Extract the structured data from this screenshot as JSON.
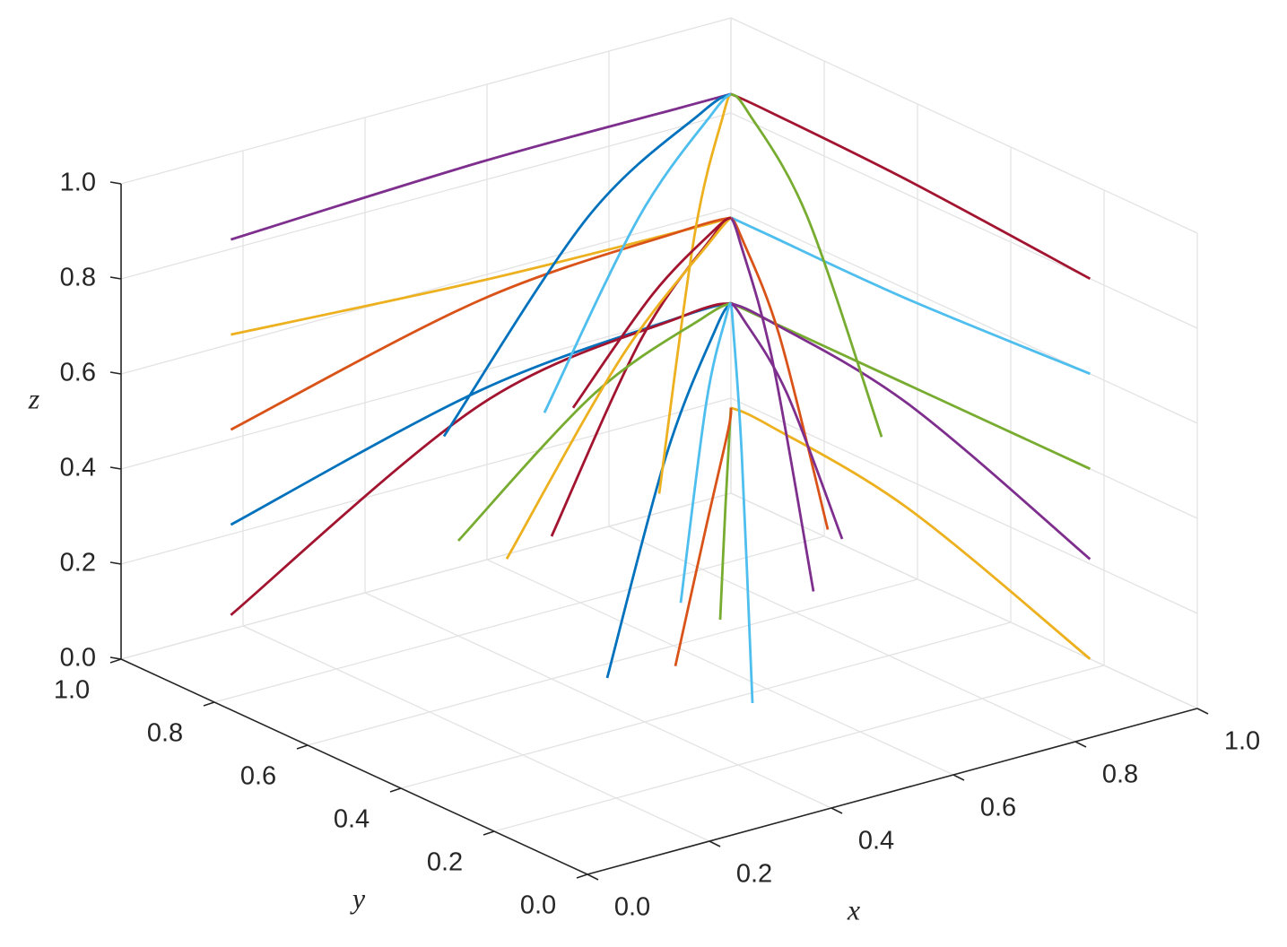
{
  "chart_data": {
    "type": "line3d",
    "x_label": "x",
    "y_label": "y",
    "z_label": "z",
    "xlim": [
      0,
      1
    ],
    "ylim": [
      0,
      1
    ],
    "zlim": [
      0,
      1
    ],
    "xticks": [
      {
        "value": 0,
        "label": "0.0"
      },
      {
        "value": 0.2,
        "label": "0.2"
      },
      {
        "value": 0.4,
        "label": "0.4"
      },
      {
        "value": 0.6,
        "label": "0.6"
      },
      {
        "value": 0.8,
        "label": "0.8"
      },
      {
        "value": 1,
        "label": "1.0"
      }
    ],
    "yticks": [
      {
        "value": 0,
        "label": "0.0"
      },
      {
        "value": 0.2,
        "label": "0.2"
      },
      {
        "value": 0.4,
        "label": "0.4"
      },
      {
        "value": 0.6,
        "label": "0.6"
      },
      {
        "value": 0.8,
        "label": "0.8"
      },
      {
        "value": 1,
        "label": "1.0"
      }
    ],
    "zticks": [
      {
        "value": 0,
        "label": "0.0"
      },
      {
        "value": 0.2,
        "label": "0.2"
      },
      {
        "value": 0.4,
        "label": "0.4"
      },
      {
        "value": 0.6,
        "label": "0.6"
      },
      {
        "value": 0.8,
        "label": "0.8"
      },
      {
        "value": 1,
        "label": "1.0"
      }
    ],
    "grid": true,
    "series": [
      {
        "color": "#7E2F8E",
        "x": [
          0.18,
          0.59,
          0.92,
          1
        ],
        "y": [
          1,
          1,
          1,
          1
        ],
        "z": [
          0.82,
          0.84,
          0.84,
          0.84
        ]
      },
      {
        "color": "#EDB120",
        "x": [
          0.18,
          0.59,
          0.92,
          1
        ],
        "y": [
          1,
          1,
          1,
          1
        ],
        "z": [
          0.62,
          0.59,
          0.58,
          0.58
        ]
      },
      {
        "color": "#D95319",
        "x": [
          0.18,
          0.59,
          0.92,
          1
        ],
        "y": [
          1,
          1,
          1,
          1
        ],
        "z": [
          0.42,
          0.55,
          0.58,
          0.58
        ]
      },
      {
        "color": "#0072BD",
        "x": [
          0.18,
          0.59,
          0.92,
          1
        ],
        "y": [
          1,
          1,
          1,
          1
        ],
        "z": [
          0.22,
          0.36,
          0.4,
          0.4
        ]
      },
      {
        "color": "#A2142F",
        "x": [
          0.18,
          0.59,
          0.92,
          1
        ],
        "y": [
          1,
          1,
          1,
          1
        ],
        "z": [
          0.03,
          0.33,
          0.4,
          0.4
        ]
      },
      {
        "color": "#A2142F",
        "x": [
          1,
          1,
          1,
          1
        ],
        "y": [
          0.23,
          0.62,
          0.92,
          1
        ],
        "z": [
          0.8,
          0.83,
          0.84,
          0.84
        ]
      },
      {
        "color": "#4DBEEE",
        "x": [
          1,
          1,
          1,
          1
        ],
        "y": [
          0.23,
          0.62,
          0.92,
          1
        ],
        "z": [
          0.6,
          0.58,
          0.58,
          0.58
        ]
      },
      {
        "color": "#77AC30",
        "x": [
          1,
          1,
          1,
          1
        ],
        "y": [
          0.23,
          0.62,
          0.92,
          1
        ],
        "z": [
          0.4,
          0.4,
          0.4,
          0.4
        ]
      },
      {
        "color": "#7E2F8E",
        "x": [
          1,
          1,
          1,
          1
        ],
        "y": [
          0.23,
          0.62,
          0.92,
          1
        ],
        "z": [
          0.21,
          0.36,
          0.4,
          0.4
        ]
      },
      {
        "color": "#EDB120",
        "x": [
          1,
          1,
          1,
          1
        ],
        "y": [
          0.23,
          0.62,
          0.92,
          1
        ],
        "z": [
          0.0,
          0.14,
          0.18,
          0.18
        ]
      },
      {
        "color": "#0072BD",
        "x": [
          0.3,
          0.65,
          0.93,
          1
        ],
        "y": [
          0.35,
          0.68,
          0.94,
          1
        ],
        "z": [
          0.15,
          0.35,
          0.4,
          0.4
        ]
      },
      {
        "color": "#4DBEEE",
        "x": [
          0.5,
          0.75,
          0.95,
          1
        ],
        "y": [
          0.3,
          0.65,
          0.93,
          1
        ],
        "z": [
          0.05,
          0.33,
          0.4,
          0.4
        ]
      },
      {
        "color": "#77AC30",
        "x": [
          0.6,
          0.8,
          0.96,
          1
        ],
        "y": [
          0.5,
          0.75,
          0.95,
          1
        ],
        "z": [
          0.1,
          0.16,
          0.18,
          0.18
        ]
      },
      {
        "color": "#A2142F",
        "x": [
          0.4,
          0.7,
          0.94,
          1
        ],
        "y": [
          0.6,
          0.8,
          0.96,
          1
        ],
        "z": [
          0.3,
          0.52,
          0.58,
          0.58
        ]
      },
      {
        "color": "#D95319",
        "x": [
          0.7,
          0.85,
          0.97,
          1
        ],
        "y": [
          0.4,
          0.7,
          0.94,
          1
        ],
        "z": [
          0.3,
          0.52,
          0.58,
          0.58
        ]
      },
      {
        "color": "#0072BD",
        "x": [
          0.3,
          0.65,
          0.93,
          1
        ],
        "y": [
          0.7,
          0.85,
          0.97,
          1
        ],
        "z": [
          0.5,
          0.77,
          0.84,
          0.84
        ]
      },
      {
        "color": "#EDB120",
        "x": [
          0.5,
          0.75,
          0.95,
          1
        ],
        "y": [
          0.5,
          0.75,
          0.95,
          1
        ],
        "z": [
          0.4,
          0.75,
          0.84,
          0.84
        ]
      },
      {
        "color": "#7E2F8E",
        "x": [
          0.8,
          0.9,
          0.98,
          1
        ],
        "y": [
          0.5,
          0.75,
          0.95,
          1
        ],
        "z": [
          0.2,
          0.36,
          0.4,
          0.4
        ]
      },
      {
        "color": "#77AC30",
        "x": [
          0.4,
          0.7,
          0.94,
          1
        ],
        "y": [
          0.8,
          0.9,
          0.98,
          1
        ],
        "z": [
          0.2,
          0.36,
          0.4,
          0.4
        ]
      },
      {
        "color": "#7E2F8E",
        "x": [
          0.6,
          0.8,
          0.96,
          1
        ],
        "y": [
          0.3,
          0.65,
          0.93,
          1
        ],
        "z": [
          0.25,
          0.51,
          0.58,
          0.58
        ]
      },
      {
        "color": "#4DBEEE",
        "x": [
          0.35,
          0.68,
          0.94,
          1
        ],
        "y": [
          0.55,
          0.78,
          0.96,
          1
        ],
        "z": [
          0.6,
          0.79,
          0.84,
          0.84
        ]
      },
      {
        "color": "#77AC30",
        "x": [
          0.75,
          0.88,
          0.98,
          1
        ],
        "y": [
          0.35,
          0.68,
          0.94,
          1
        ],
        "z": [
          0.5,
          0.77,
          0.84,
          0.84
        ]
      },
      {
        "color": "#EDB120",
        "x": [
          0.25,
          0.63,
          0.93,
          1
        ],
        "y": [
          0.5,
          0.75,
          0.95,
          1
        ],
        "z": [
          0.35,
          0.53,
          0.58,
          0.58
        ]
      },
      {
        "color": "#A2142F",
        "x": [
          0.55,
          0.78,
          0.96,
          1
        ],
        "y": [
          0.75,
          0.88,
          0.98,
          1
        ],
        "z": [
          0.45,
          0.55,
          0.58,
          0.58
        ]
      },
      {
        "color": "#D95319",
        "x": [
          0.45,
          0.73,
          0.95,
          1
        ],
        "y": [
          0.4,
          0.7,
          0.94,
          1
        ],
        "z": [
          0.1,
          0.16,
          0.18,
          0.18
        ]
      },
      {
        "color": "#4DBEEE",
        "x": [
          0.65,
          0.83,
          0.97,
          1
        ],
        "y": [
          0.65,
          0.83,
          0.97,
          1
        ],
        "z": [
          0.05,
          0.33,
          0.4,
          0.4
        ]
      }
    ]
  }
}
